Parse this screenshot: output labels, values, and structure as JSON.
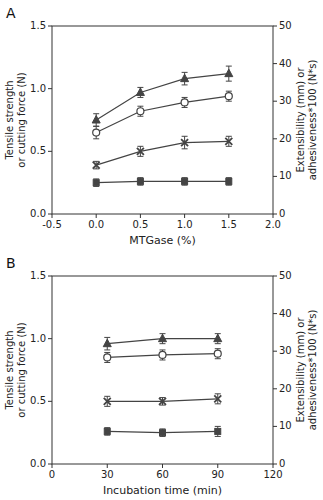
{
  "chart_data": [
    {
      "type": "line",
      "title": "A",
      "xlabel": "MTGase (%)",
      "ylabel": "Tensile strength\nor cutting force (N)",
      "y2label": "Extensibility (mm) or\nadhesiveness*100 (N*s)",
      "x": [
        0.0,
        0.5,
        1.0,
        1.5
      ],
      "xlim": [
        -0.5,
        2.0
      ],
      "xticks": [
        -0.5,
        {
          "value": 0.0,
          "label": "0.0"
        },
        0.5,
        {
          "value": 1.0,
          "label": "1.0"
        },
        1.5,
        {
          "value": 2.0,
          "label": "2.0"
        }
      ],
      "ylim": [
        0.0,
        1.5
      ],
      "yticks": [
        {
          "value": 0.0,
          "label": "0.0"
        },
        0.5,
        {
          "value": 1.0,
          "label": "1.0"
        },
        1.5
      ],
      "y2lim": [
        0,
        50
      ],
      "y2ticks": [
        0,
        10,
        20,
        30,
        40,
        50
      ],
      "grid": false,
      "series": [
        {
          "color": "#444444",
          "marker": "triangle",
          "values": [
            0.75,
            0.97,
            1.08,
            1.12
          ],
          "yerr": [
            0.05,
            0.04,
            0.05,
            0.06
          ]
        },
        {
          "color": "#444444",
          "marker": "open-circle",
          "values": [
            0.65,
            0.82,
            0.89,
            0.94
          ],
          "yerr": [
            0.05,
            0.04,
            0.04,
            0.04
          ]
        },
        {
          "color": "#444444",
          "marker": "x",
          "values": [
            0.39,
            0.5,
            0.57,
            0.58
          ],
          "yerr": [
            0.03,
            0.04,
            0.05,
            0.04
          ]
        },
        {
          "color": "#444444",
          "marker": "square",
          "values": [
            0.25,
            0.26,
            0.26,
            0.26
          ],
          "yerr": [
            0.03,
            0.03,
            0.03,
            0.03
          ]
        }
      ]
    },
    {
      "type": "line",
      "title": "B",
      "xlabel": "Incubation time (min)",
      "ylabel": "Tensile strength\nor cutting force (N)",
      "y2label": "Extensibility (mm) or\nadhesiveness*100 (N*s)",
      "x": [
        30,
        60,
        90
      ],
      "xlim": [
        0,
        120
      ],
      "xticks": [
        0,
        30,
        60,
        90,
        120
      ],
      "ylim": [
        0.0,
        1.5
      ],
      "yticks": [
        {
          "value": 0.0,
          "label": "0.0"
        },
        0.5,
        {
          "value": 1.0,
          "label": "1.0"
        },
        1.5
      ],
      "y2lim": [
        0,
        50
      ],
      "y2ticks": [
        0,
        10,
        20,
        30,
        40,
        50
      ],
      "grid": false,
      "series": [
        {
          "color": "#444444",
          "marker": "triangle",
          "values": [
            0.96,
            1.0,
            1.0
          ],
          "yerr": [
            0.05,
            0.04,
            0.04
          ]
        },
        {
          "color": "#444444",
          "marker": "open-circle",
          "values": [
            0.85,
            0.87,
            0.88
          ],
          "yerr": [
            0.04,
            0.04,
            0.04
          ]
        },
        {
          "color": "#444444",
          "marker": "x",
          "values": [
            0.5,
            0.5,
            0.52
          ],
          "yerr": [
            0.04,
            0.03,
            0.04
          ]
        },
        {
          "color": "#444444",
          "marker": "square",
          "values": [
            0.26,
            0.25,
            0.26
          ],
          "yerr": [
            0.03,
            0.03,
            0.04
          ]
        }
      ]
    }
  ]
}
